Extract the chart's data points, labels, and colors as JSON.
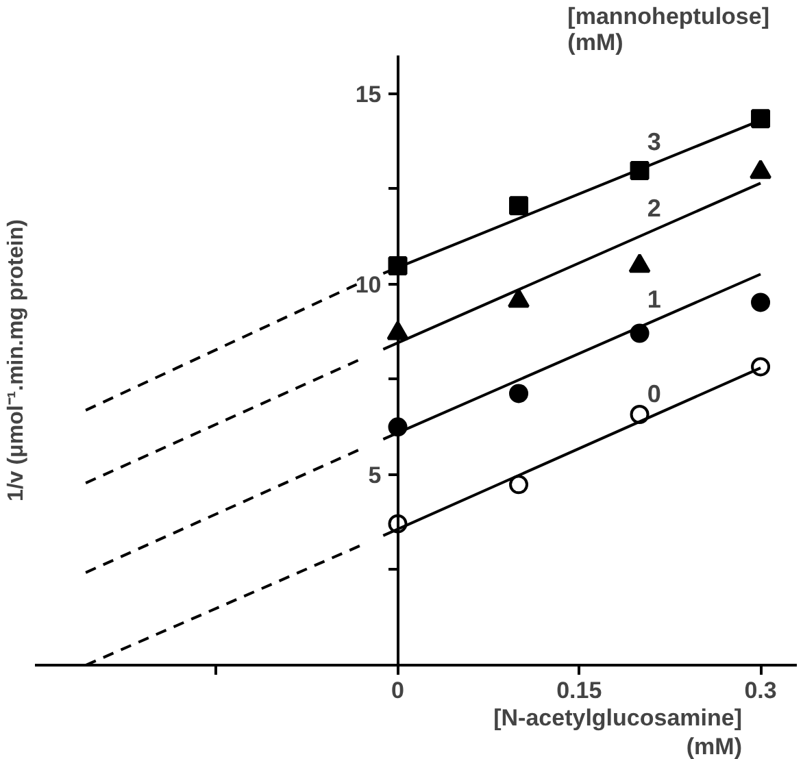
{
  "chart_data": {
    "type": "scatter",
    "xlabel": "[N-acetylglucosamine]\n(mM)",
    "ylabel": "1/v (μmol⁻¹.min.mg protein)",
    "xlim": [
      -0.3,
      0.33
    ],
    "ylim": [
      0,
      16
    ],
    "xticks": [
      {
        "value": -0.15,
        "label": null
      },
      0,
      0.15,
      0.3
    ],
    "yticks": [
      {
        "value": 2.5,
        "label": null
      },
      5,
      {
        "value": 7.5,
        "label": null
      },
      10,
      {
        "value": 12.5,
        "label": null
      },
      15
    ],
    "grid": false,
    "legend": false,
    "annotations": [
      "[mannoheptulose]\n(mM)"
    ],
    "series": [
      {
        "marker": "circle_open",
        "color": "#000000",
        "x": [
          0,
          0.1,
          0.2,
          0.3
        ],
        "values": [
          3.71,
          4.74,
          6.58,
          7.83
        ]
      },
      {
        "marker": "circle",
        "color": "#000000",
        "x": [
          0,
          0.1,
          0.2,
          0.3
        ],
        "values": [
          6.25,
          7.13,
          8.71,
          9.52
        ]
      },
      {
        "marker": "triangle",
        "color": "#000000",
        "x": [
          0,
          0.1,
          0.2,
          0.3
        ],
        "values": [
          8.71,
          9.56,
          10.48,
          12.94
        ]
      },
      {
        "marker": "square",
        "color": "#000000",
        "x": [
          0,
          0.1,
          0.2,
          0.3
        ],
        "values": [
          10.48,
          12.06,
          12.98,
          14.34
        ]
      },
      {
        "type": "line",
        "name": "0",
        "line_style": "solid",
        "color": "#000000",
        "x": [
          -0.012,
          0.3
        ],
        "values": [
          3.4,
          7.8
        ]
      },
      {
        "type": "line",
        "name": "1",
        "line_style": "solid",
        "color": "#000000",
        "x": [
          -0.012,
          0.3
        ],
        "values": [
          5.93,
          10.26
        ]
      },
      {
        "type": "line",
        "name": "2",
        "line_style": "solid",
        "color": "#000000",
        "x": [
          -0.012,
          0.3
        ],
        "values": [
          8.29,
          12.65
        ]
      },
      {
        "type": "line",
        "name": "3",
        "line_style": "solid",
        "color": "#000000",
        "x": [
          -0.012,
          0.3
        ],
        "values": [
          10.28,
          14.3
        ]
      },
      {
        "type": "line",
        "line_style": "dashed",
        "color": "#000000",
        "x": [
          -0.258,
          -0.03
        ],
        "values": [
          0,
          3.15
        ]
      },
      {
        "type": "line",
        "line_style": "dashed",
        "color": "#000000",
        "x": [
          -0.258,
          -0.03
        ],
        "values": [
          2.43,
          5.68
        ]
      },
      {
        "type": "line",
        "line_style": "dashed",
        "color": "#000000",
        "x": [
          -0.258,
          -0.03
        ],
        "values": [
          4.78,
          8.04
        ]
      },
      {
        "type": "line",
        "line_style": "dashed",
        "color": "#000000",
        "x": [
          -0.258,
          -0.03
        ],
        "values": [
          6.69,
          10.05
        ]
      }
    ]
  }
}
